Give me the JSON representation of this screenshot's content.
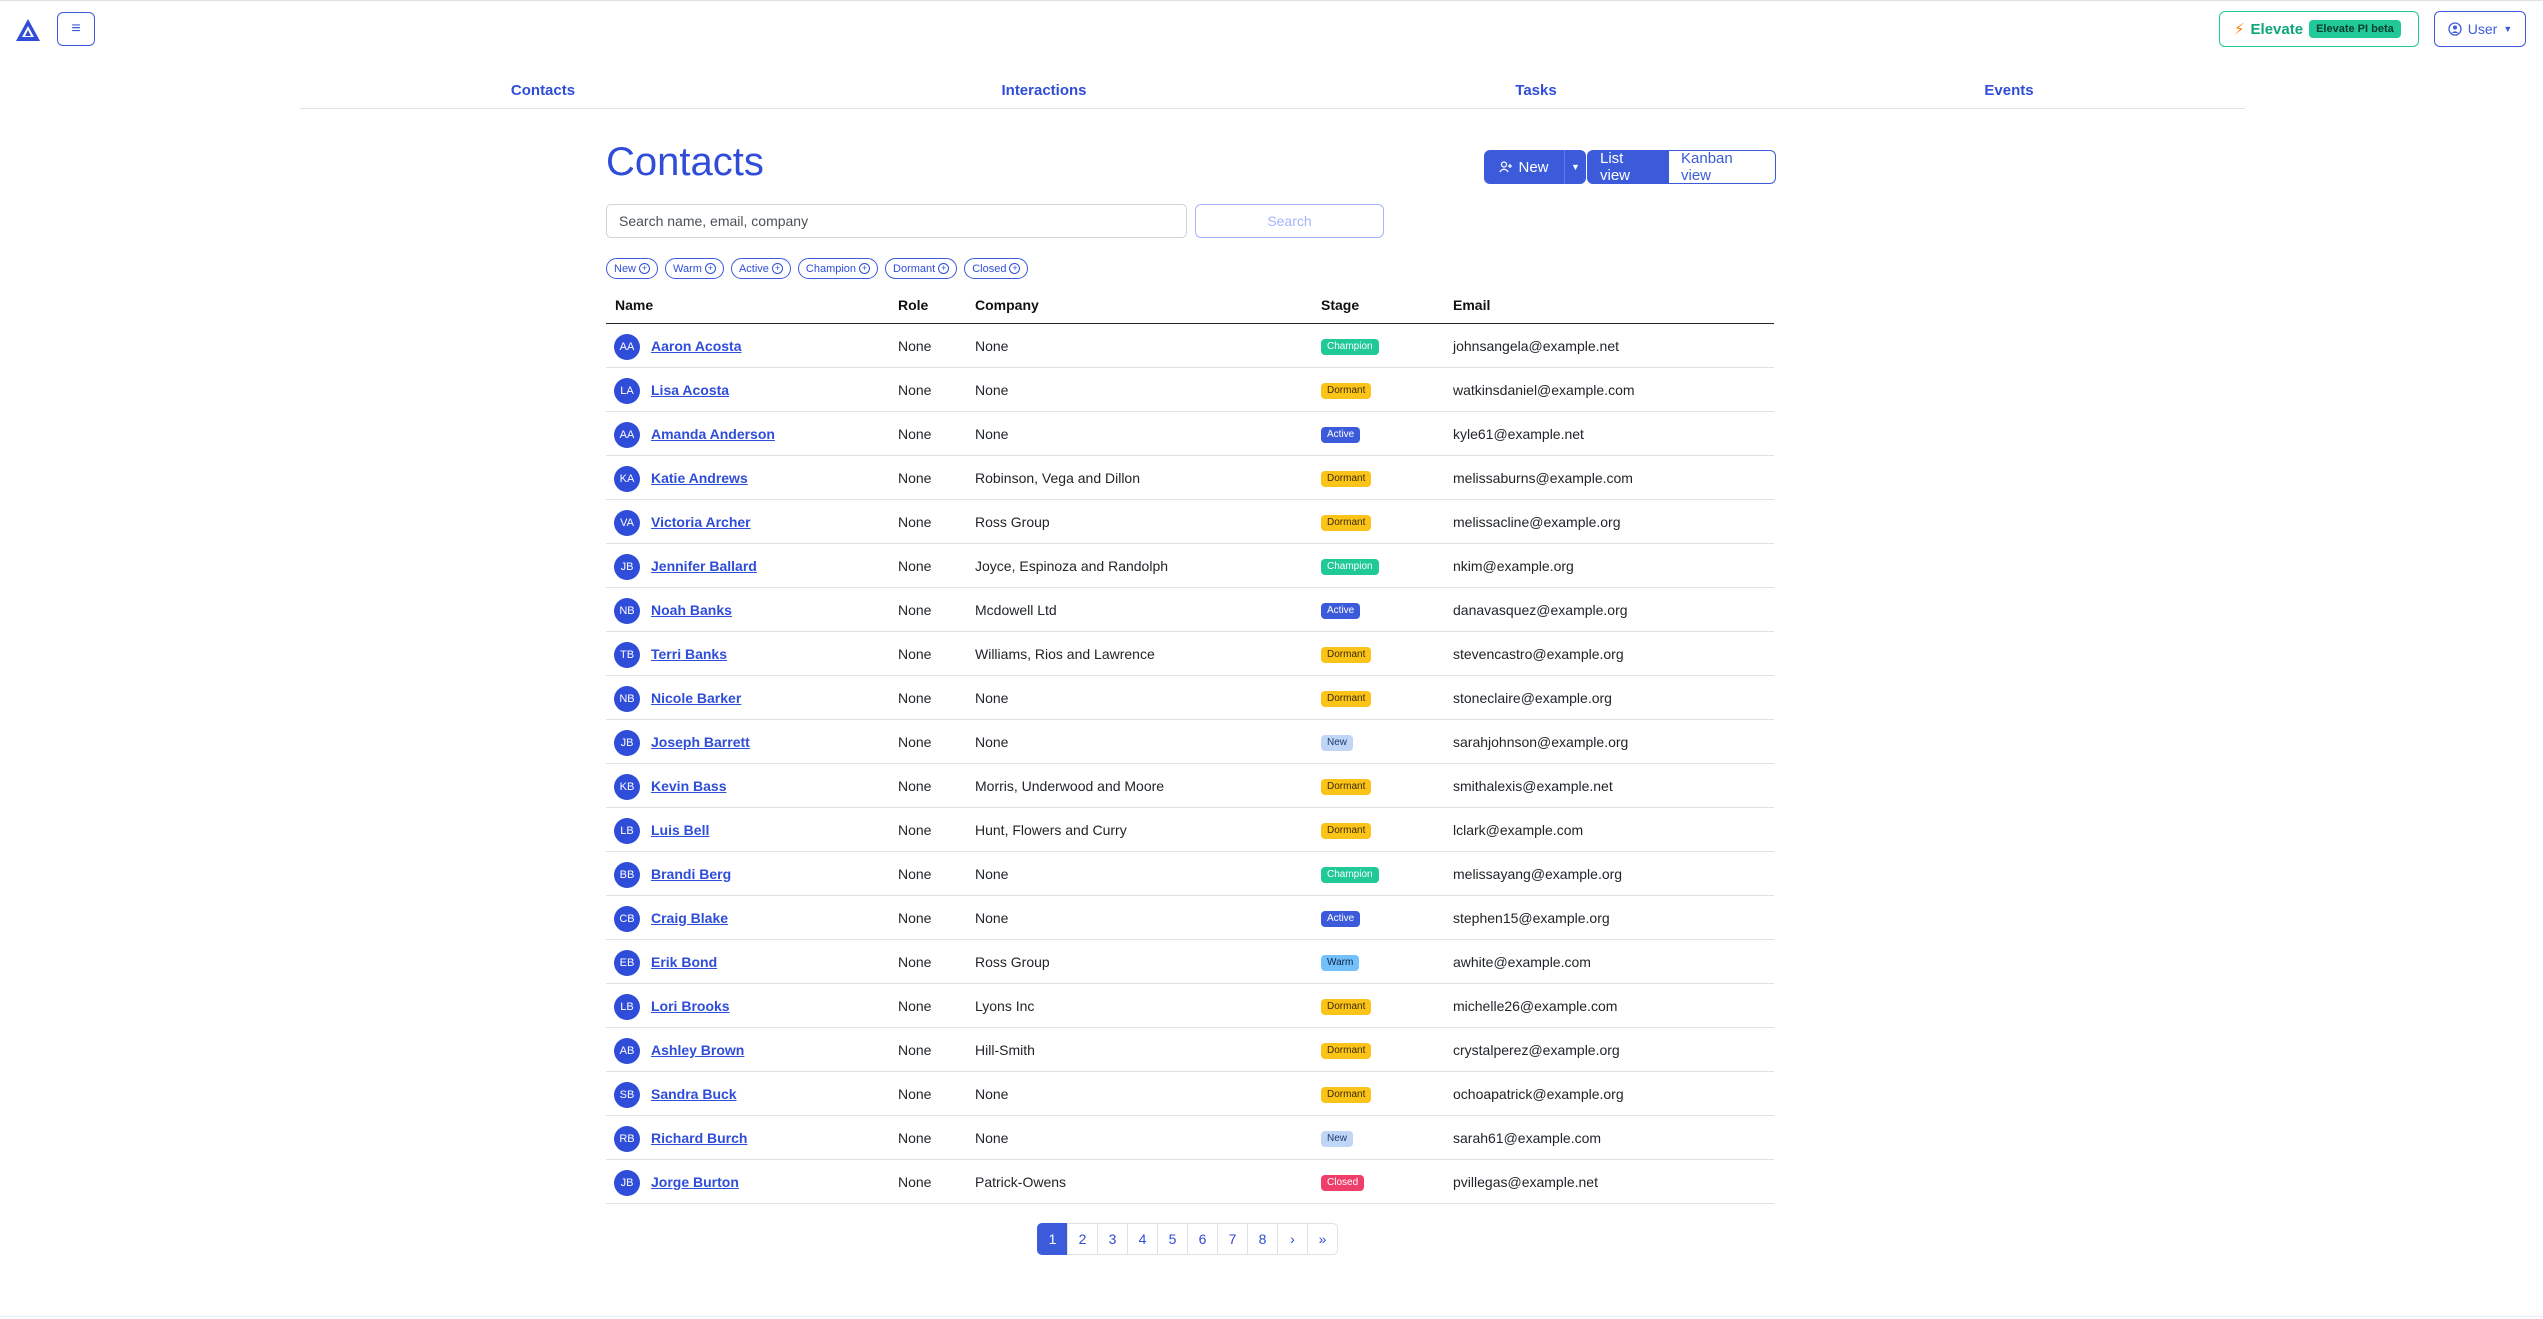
{
  "header": {
    "menu_icon": "hamburger-icon",
    "elevate_label": "Elevate",
    "elevate_badge": "Elevate PI beta",
    "user_label": "User"
  },
  "nav": [
    {
      "label": "Contacts"
    },
    {
      "label": "Interactions"
    },
    {
      "label": "Tasks"
    },
    {
      "label": "Events"
    }
  ],
  "page": {
    "title": "Contacts",
    "new_label": "New",
    "list_view_label": "List view",
    "kanban_view_label": "Kanban view",
    "search_placeholder": "Search name, email, company",
    "search_button": "Search"
  },
  "filters": [
    "New",
    "Warm",
    "Active",
    "Champion",
    "Dormant",
    "Closed"
  ],
  "table": {
    "columns": [
      "Name",
      "Role",
      "Company",
      "Stage",
      "Email"
    ],
    "rows": [
      {
        "initials": "AA",
        "name": "Aaron Acosta",
        "role": "None",
        "company": "None",
        "stage": "Champion",
        "email": "johnsangela@example.net"
      },
      {
        "initials": "LA",
        "name": "Lisa Acosta",
        "role": "None",
        "company": "None",
        "stage": "Dormant",
        "email": "watkinsdaniel@example.com"
      },
      {
        "initials": "AA",
        "name": "Amanda Anderson",
        "role": "None",
        "company": "None",
        "stage": "Active",
        "email": "kyle61@example.net"
      },
      {
        "initials": "KA",
        "name": "Katie Andrews",
        "role": "None",
        "company": "Robinson, Vega and Dillon",
        "stage": "Dormant",
        "email": "melissaburns@example.com"
      },
      {
        "initials": "VA",
        "name": "Victoria Archer",
        "role": "None",
        "company": "Ross Group",
        "stage": "Dormant",
        "email": "melissacline@example.org"
      },
      {
        "initials": "JB",
        "name": "Jennifer Ballard",
        "role": "None",
        "company": "Joyce, Espinoza and Randolph",
        "stage": "Champion",
        "email": "nkim@example.org"
      },
      {
        "initials": "NB",
        "name": "Noah Banks",
        "role": "None",
        "company": "Mcdowell Ltd",
        "stage": "Active",
        "email": "danavasquez@example.org"
      },
      {
        "initials": "TB",
        "name": "Terri Banks",
        "role": "None",
        "company": "Williams, Rios and Lawrence",
        "stage": "Dormant",
        "email": "stevencastro@example.org"
      },
      {
        "initials": "NB",
        "name": "Nicole Barker",
        "role": "None",
        "company": "None",
        "stage": "Dormant",
        "email": "stoneclaire@example.org"
      },
      {
        "initials": "JB",
        "name": "Joseph Barrett",
        "role": "None",
        "company": "None",
        "stage": "New",
        "email": "sarahjohnson@example.org"
      },
      {
        "initials": "KB",
        "name": "Kevin Bass",
        "role": "None",
        "company": "Morris, Underwood and Moore",
        "stage": "Dormant",
        "email": "smithalexis@example.net"
      },
      {
        "initials": "LB",
        "name": "Luis Bell",
        "role": "None",
        "company": "Hunt, Flowers and Curry",
        "stage": "Dormant",
        "email": "lclark@example.com"
      },
      {
        "initials": "BB",
        "name": "Brandi Berg",
        "role": "None",
        "company": "None",
        "stage": "Champion",
        "email": "melissayang@example.org"
      },
      {
        "initials": "CB",
        "name": "Craig Blake",
        "role": "None",
        "company": "None",
        "stage": "Active",
        "email": "stephen15@example.org"
      },
      {
        "initials": "EB",
        "name": "Erik Bond",
        "role": "None",
        "company": "Ross Group",
        "stage": "Warm",
        "email": "awhite@example.com"
      },
      {
        "initials": "LB",
        "name": "Lori Brooks",
        "role": "None",
        "company": "Lyons Inc",
        "stage": "Dormant",
        "email": "michelle26@example.com"
      },
      {
        "initials": "AB",
        "name": "Ashley Brown",
        "role": "None",
        "company": "Hill-Smith",
        "stage": "Dormant",
        "email": "crystalperez@example.org"
      },
      {
        "initials": "SB",
        "name": "Sandra Buck",
        "role": "None",
        "company": "None",
        "stage": "Dormant",
        "email": "ochoapatrick@example.org"
      },
      {
        "initials": "RB",
        "name": "Richard Burch",
        "role": "None",
        "company": "None",
        "stage": "New",
        "email": "sarah61@example.com"
      },
      {
        "initials": "JB",
        "name": "Jorge Burton",
        "role": "None",
        "company": "Patrick-Owens",
        "stage": "Closed",
        "email": "pvillegas@example.net"
      }
    ]
  },
  "pagination": {
    "pages": [
      "1",
      "2",
      "3",
      "4",
      "5",
      "6",
      "7",
      "8",
      "›",
      "»"
    ],
    "active": "1"
  }
}
